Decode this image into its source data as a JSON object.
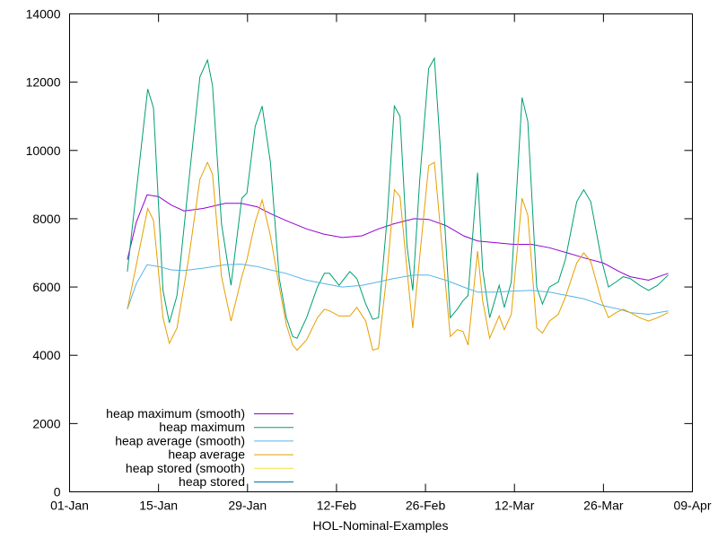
{
  "chart_data": {
    "type": "line",
    "title": "",
    "xlabel": "HOL-Nominal-Examples",
    "ylabel": "",
    "x_units": "days since 01-Jan",
    "xlim": [
      0,
      98
    ],
    "ylim": [
      0,
      14000
    ],
    "grid": false,
    "legend_placement": "bottom-left",
    "x_ticks": [
      {
        "value": 0,
        "label": "01-Jan"
      },
      {
        "value": 14,
        "label": "15-Jan"
      },
      {
        "value": 28,
        "label": "29-Jan"
      },
      {
        "value": 42,
        "label": "12-Feb"
      },
      {
        "value": 56,
        "label": "26-Feb"
      },
      {
        "value": 70,
        "label": "12-Mar"
      },
      {
        "value": 84,
        "label": "26-Mar"
      },
      {
        "value": 98,
        "label": "09-Apr"
      }
    ],
    "y_ticks": [
      {
        "value": 0,
        "label": "0"
      },
      {
        "value": 2000,
        "label": "2000"
      },
      {
        "value": 4000,
        "label": "4000"
      },
      {
        "value": 6000,
        "label": "6000"
      },
      {
        "value": 8000,
        "label": "8000"
      },
      {
        "value": 10000,
        "label": "10000"
      },
      {
        "value": 12000,
        "label": "12000"
      },
      {
        "value": 14000,
        "label": "14000"
      }
    ],
    "x_raw": [
      9.1,
      12.3,
      13.2,
      14.7,
      15.7,
      16.9,
      18.8,
      20.5,
      21.7,
      22.5,
      23.9,
      25.4,
      27.1,
      27.9,
      29.2,
      30.3,
      31.6,
      33.0,
      34.1,
      35.1,
      35.8,
      37.3,
      39.0,
      40.1,
      40.9,
      42.4,
      44.1,
      45.2,
      46.6,
      47.7,
      48.6,
      50.0,
      51.1,
      52.0,
      53.1,
      54.0,
      55.1,
      56.5,
      57.4,
      58.2,
      59.9,
      61.0,
      61.9,
      62.7,
      64.2,
      65.0,
      66.1,
      67.6,
      68.4,
      69.5,
      71.2,
      72.1,
      73.5,
      74.4,
      75.5,
      76.9,
      78.0,
      79.8,
      80.9,
      82.0,
      83.7,
      84.8,
      86.0,
      87.1,
      88.2,
      89.7,
      91.1,
      92.5,
      94.2
    ],
    "x_smooth": [
      9.1,
      10.5,
      12.2,
      14,
      16.0,
      18,
      21,
      24.5,
      27,
      29.5,
      31.6,
      34,
      37.3,
      40,
      42.9,
      46,
      48.6,
      51,
      54.2,
      56.5,
      59.2,
      62,
      64.2,
      67,
      69.8,
      72.7,
      75.5,
      78.3,
      81,
      84.0,
      86.5,
      88.2,
      91.1,
      94.2
    ],
    "series": [
      {
        "name": "heap maximum (smooth)",
        "color": "#9400d3",
        "x_key": "x_smooth",
        "values": [
          6800,
          7900,
          8700,
          8650,
          8400,
          8230,
          8300,
          8450,
          8450,
          8350,
          8150,
          7950,
          7700,
          7550,
          7450,
          7500,
          7700,
          7850,
          8000,
          7980,
          7800,
          7500,
          7350,
          7300,
          7250,
          7250,
          7150,
          7000,
          6850,
          6700,
          6450,
          6300,
          6200,
          6400
        ]
      },
      {
        "name": "heap maximum",
        "color": "#009e73",
        "x_key": "x_raw",
        "values": [
          6450,
          11800,
          11250,
          5900,
          4950,
          5750,
          9150,
          12150,
          12650,
          11900,
          7850,
          6050,
          8600,
          8750,
          10700,
          11300,
          9650,
          6250,
          5100,
          4550,
          4500,
          5100,
          6000,
          6400,
          6400,
          6050,
          6450,
          6250,
          5500,
          5050,
          5100,
          8100,
          11300,
          11000,
          7200,
          5900,
          9150,
          12400,
          12700,
          10450,
          5100,
          5350,
          5600,
          5750,
          9350,
          6500,
          5100,
          6050,
          5400,
          6150,
          11550,
          10850,
          6000,
          5500,
          6000,
          6150,
          6800,
          8500,
          8850,
          8500,
          6800,
          6000,
          6150,
          6300,
          6250,
          6050,
          5900,
          6050,
          6350
        ]
      },
      {
        "name": "heap average (smooth)",
        "color": "#56b4e9",
        "x_key": "x_smooth",
        "values": [
          5350,
          6100,
          6650,
          6600,
          6500,
          6480,
          6550,
          6650,
          6670,
          6600,
          6500,
          6400,
          6200,
          6100,
          6000,
          6050,
          6150,
          6250,
          6350,
          6350,
          6200,
          6000,
          5850,
          5850,
          5880,
          5900,
          5850,
          5750,
          5650,
          5450,
          5350,
          5250,
          5200,
          5300
        ]
      },
      {
        "name": "heap average",
        "color": "#e69f00",
        "x_key": "x_raw",
        "values": [
          5350,
          8300,
          7950,
          5100,
          4350,
          4800,
          6900,
          9150,
          9650,
          9300,
          6300,
          5000,
          6300,
          6800,
          7900,
          8550,
          7500,
          6000,
          4900,
          4300,
          4150,
          4450,
          5100,
          5350,
          5300,
          5150,
          5150,
          5400,
          5000,
          4150,
          4200,
          6500,
          8850,
          8650,
          6500,
          4800,
          6900,
          9550,
          9650,
          8000,
          4550,
          4750,
          4700,
          4300,
          7050,
          5600,
          4500,
          5150,
          4750,
          5200,
          8600,
          8100,
          4800,
          4650,
          5000,
          5200,
          5700,
          6700,
          7000,
          6750,
          5600,
          5100,
          5250,
          5350,
          5250,
          5100,
          5000,
          5100,
          5250
        ]
      },
      {
        "name": "heap stored (smooth)",
        "color": "#f0e442",
        "x_key": "x_smooth",
        "values": []
      },
      {
        "name": "heap stored",
        "color": "#0072b2",
        "x_key": "x_raw",
        "values": []
      }
    ]
  }
}
